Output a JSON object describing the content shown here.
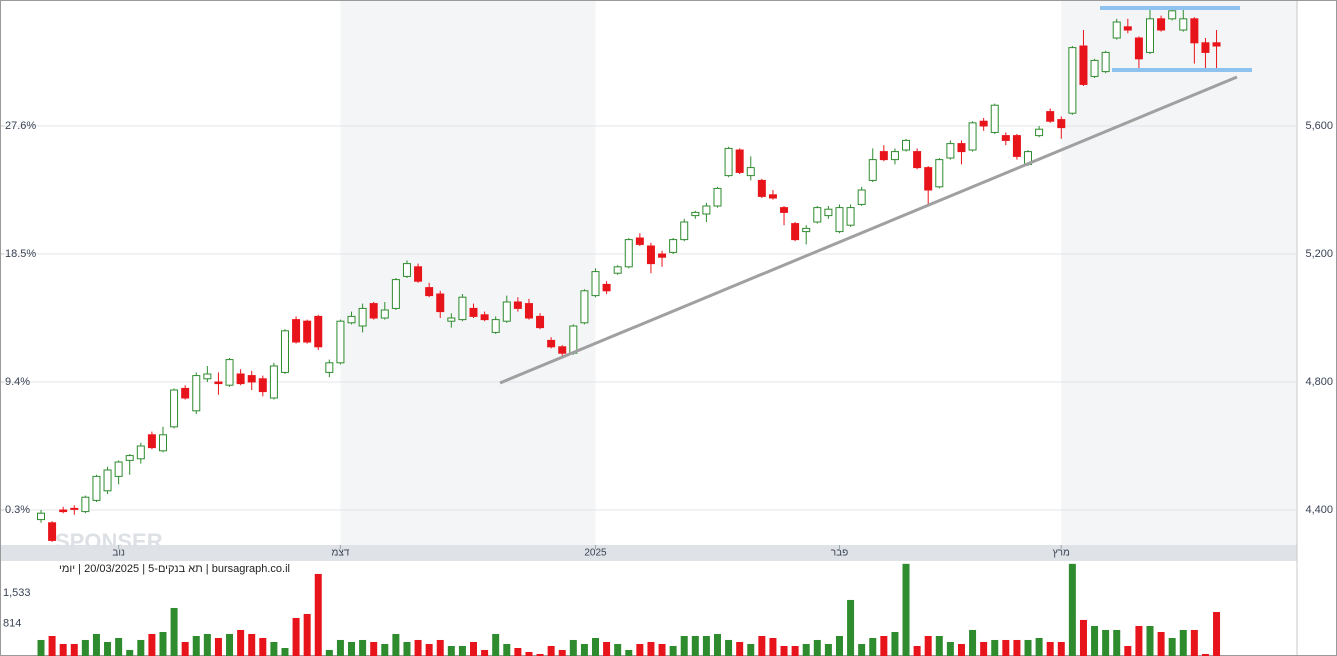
{
  "chart_data": {
    "type": "candlestick",
    "info": "bursagraph.co.il | תא בנקים-5 | 20/03/2025 | יומי",
    "watermark": "SPONSER",
    "up_color": "#2e8b2e",
    "down_color": "#e8141b",
    "xticks": [
      {
        "value": 7,
        "label": "נוב"
      },
      {
        "value": 27,
        "label": "דצמ"
      },
      {
        "value": 50,
        "label": "2025"
      },
      {
        "value": 72,
        "label": "פבר"
      },
      {
        "value": 92,
        "label": "מרץ"
      }
    ],
    "ylim": [
      4290.6,
      5993.8
    ],
    "yticks": [
      {
        "value": 4400,
        "label": "4,400"
      },
      {
        "value": 4800,
        "label": "4,800"
      },
      {
        "value": 5200,
        "label": "5,200"
      },
      {
        "value": 5600,
        "label": "5,600"
      }
    ],
    "y2lim": [
      -2.19,
      36.56
    ],
    "y2ticks": [
      {
        "value": 0.3,
        "label": "0.3%"
      },
      {
        "value": 9.4,
        "label": "9.4%"
      },
      {
        "value": 18.5,
        "label": "18.5%"
      },
      {
        "value": 27.6,
        "label": "27.6%"
      }
    ],
    "grid": true,
    "open": [
      4370,
      4360,
      4400,
      4405,
      4395,
      4430,
      4460,
      4505,
      4555,
      4560,
      4635,
      4585,
      4660,
      4780,
      4710,
      4810,
      4800,
      4790,
      4825,
      4820,
      4810,
      4750,
      4830,
      4995,
      4990,
      5005,
      4830,
      4860,
      4985,
      4975,
      5045,
      5000,
      5030,
      5130,
      5160,
      5095,
      5075,
      4990,
      4995,
      5030,
      5010,
      4955,
      4990,
      5050,
      5045,
      5005,
      4930,
      4910,
      4890,
      4985,
      5070,
      5105,
      5140,
      5160,
      5250,
      5225,
      5200,
      5205,
      5245,
      5320,
      5325,
      5350,
      5445,
      5525,
      5445,
      5430,
      5385,
      5345,
      5295,
      5270,
      5300,
      5320,
      5270,
      5290,
      5355,
      5430,
      5520,
      5495,
      5525,
      5520,
      5470,
      5410,
      5500,
      5545,
      5525,
      5615,
      5580,
      5570,
      5570,
      5480,
      5570,
      5645,
      5620,
      5640,
      5850,
      5755,
      5770,
      5875,
      5910,
      5875,
      5830,
      5935,
      5935,
      5900,
      5935,
      5860,
      5860
    ],
    "high": [
      4400,
      4365,
      4410,
      4415,
      4445,
      4510,
      4535,
      4555,
      4575,
      4610,
      4645,
      4660,
      4780,
      4790,
      4830,
      4850,
      4830,
      4875,
      4840,
      4835,
      4820,
      4860,
      4965,
      5005,
      4995,
      5010,
      4870,
      4995,
      5020,
      5045,
      5050,
      5050,
      5125,
      5180,
      5170,
      5110,
      5085,
      5015,
      5075,
      5045,
      5020,
      5005,
      5070,
      5065,
      5060,
      5015,
      4940,
      4915,
      4980,
      5090,
      5155,
      5115,
      5165,
      5250,
      5265,
      5235,
      5210,
      5250,
      5310,
      5335,
      5360,
      5410,
      5535,
      5530,
      5505,
      5435,
      5400,
      5350,
      5300,
      5290,
      5350,
      5350,
      5355,
      5355,
      5410,
      5530,
      5540,
      5530,
      5560,
      5530,
      5475,
      5500,
      5555,
      5555,
      5615,
      5625,
      5670,
      5580,
      5575,
      5525,
      5600,
      5655,
      5630,
      5850,
      5900,
      5810,
      5835,
      5935,
      5935,
      5880,
      5965,
      5945,
      5970,
      5965,
      5940,
      5875,
      5900
    ],
    "low": [
      4360,
      4300,
      4390,
      4385,
      4390,
      4425,
      4450,
      4480,
      4510,
      4545,
      4590,
      4580,
      4655,
      4745,
      4700,
      4800,
      4760,
      4785,
      4790,
      4775,
      4755,
      4745,
      4825,
      4920,
      4920,
      4900,
      4815,
      4855,
      4980,
      4955,
      4995,
      4995,
      5025,
      5125,
      5110,
      5065,
      5000,
      4970,
      4990,
      5000,
      4990,
      4950,
      4985,
      5020,
      4995,
      4965,
      4905,
      4880,
      4885,
      4980,
      5065,
      5075,
      5135,
      5155,
      5225,
      5140,
      5160,
      5200,
      5240,
      5310,
      5300,
      5345,
      5440,
      5450,
      5430,
      5375,
      5370,
      5290,
      5240,
      5230,
      5295,
      5310,
      5265,
      5285,
      5350,
      5425,
      5490,
      5480,
      5520,
      5465,
      5350,
      5405,
      5495,
      5480,
      5520,
      5585,
      5575,
      5540,
      5495,
      5475,
      5565,
      5610,
      5560,
      5635,
      5725,
      5750,
      5765,
      5870,
      5890,
      5770,
      5825,
      5895,
      5930,
      5895,
      5795,
      5775,
      5780
    ],
    "close": [
      4390,
      4305,
      4395,
      4402,
      4440,
      4505,
      4525,
      4550,
      4570,
      4600,
      4595,
      4635,
      4775,
      4750,
      4820,
      4825,
      4795,
      4870,
      4795,
      4800,
      4770,
      4850,
      4960,
      4925,
      4925,
      4910,
      4860,
      4990,
      5005,
      5030,
      5000,
      5025,
      5120,
      5170,
      5115,
      5070,
      5020,
      5000,
      5065,
      5005,
      4995,
      4995,
      5050,
      5030,
      5000,
      4970,
      4910,
      4890,
      4975,
      5085,
      5145,
      5085,
      5160,
      5245,
      5230,
      5170,
      5190,
      5245,
      5300,
      5330,
      5350,
      5405,
      5530,
      5455,
      5470,
      5380,
      5375,
      5330,
      5245,
      5280,
      5345,
      5340,
      5345,
      5345,
      5400,
      5495,
      5495,
      5520,
      5555,
      5470,
      5400,
      5495,
      5545,
      5520,
      5610,
      5600,
      5665,
      5555,
      5505,
      5520,
      5590,
      5615,
      5595,
      5845,
      5730,
      5805,
      5830,
      5925,
      5900,
      5810,
      5935,
      5900,
      5960,
      5935,
      5860,
      5830,
      5850
    ],
    "volume": [
      427,
      521,
      332,
      332,
      427,
      569,
      379,
      474,
      190,
      427,
      569,
      616,
      1185,
      379,
      521,
      569,
      474,
      569,
      664,
      569,
      474,
      379,
      237,
      948,
      1043,
      1991,
      190,
      427,
      379,
      427,
      379,
      332,
      569,
      379,
      427,
      332,
      427,
      284,
      284,
      379,
      190,
      569,
      332,
      237,
      142,
      95,
      284,
      190,
      427,
      332,
      474,
      379,
      332,
      190,
      332,
      379,
      332,
      284,
      521,
      521,
      521,
      569,
      427,
      379,
      332,
      521,
      474,
      284,
      284,
      332,
      427,
      332,
      521,
      1375,
      332,
      474,
      521,
      616,
      2230,
      284,
      521,
      521,
      379,
      332,
      664,
      379,
      427,
      427,
      427,
      427,
      474,
      379,
      379,
      2230,
      901,
      758,
      664,
      664,
      284,
      758,
      758,
      616,
      474,
      664,
      664,
      95,
      1090
    ],
    "vlim": [
      0,
      2250
    ],
    "vticks": [
      {
        "value": 814,
        "label": "814"
      },
      {
        "value": 1533,
        "label": "1,533"
      }
    ]
  }
}
